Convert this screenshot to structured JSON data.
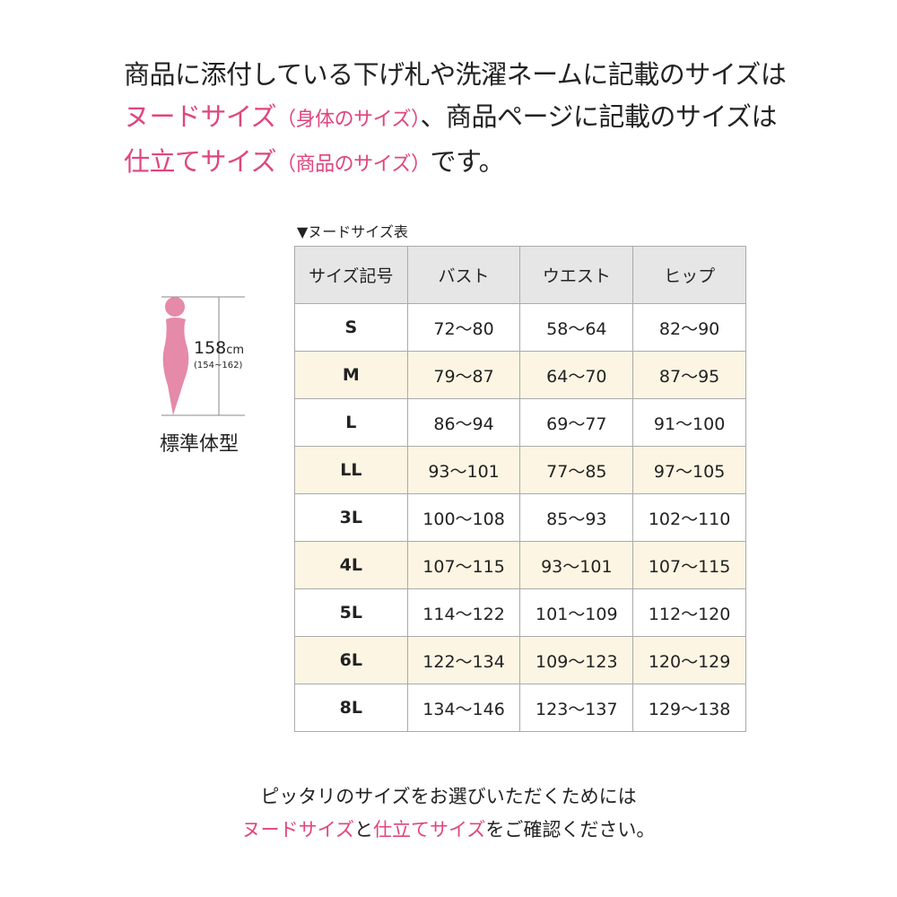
{
  "intro": {
    "line1": "商品に添付している下げ札や洗濯ネームに記載のサイズは",
    "nude_label": "ヌードサイズ",
    "nude_note": "（身体のサイズ）",
    "line2_rest": "、商品ページに記載のサイズは",
    "finished_label": "仕立てサイズ",
    "finished_note": "（商品のサイズ）",
    "line3_rest": "です。"
  },
  "figure": {
    "height": "158",
    "unit": "cm",
    "range": "(154~162)",
    "label": "標準体型",
    "color": "#e58aa8"
  },
  "table": {
    "caption": "▼ヌードサイズ表",
    "headers": [
      "サイズ記号",
      "バスト",
      "ウエスト",
      "ヒップ"
    ],
    "rows": [
      [
        "S",
        "72〜80",
        "58〜64",
        "82〜90"
      ],
      [
        "M",
        "79〜87",
        "64〜70",
        "87〜95"
      ],
      [
        "L",
        "86〜94",
        "69〜77",
        "91〜100"
      ],
      [
        "LL",
        "93〜101",
        "77〜85",
        "97〜105"
      ],
      [
        "3L",
        "100〜108",
        "85〜93",
        "102〜110"
      ],
      [
        "4L",
        "107〜115",
        "93〜101",
        "107〜115"
      ],
      [
        "5L",
        "114〜122",
        "101〜109",
        "112〜120"
      ],
      [
        "6L",
        "122〜134",
        "109〜123",
        "120〜129"
      ],
      [
        "8L",
        "134〜146",
        "123〜137",
        "129〜138"
      ]
    ]
  },
  "outro": {
    "line1": "ピッタリのサイズをお選びいただくためには",
    "nude_label": "ヌードサイズ",
    "and": "と",
    "finished_label": "仕立てサイズ",
    "rest": "をご確認ください。"
  },
  "colors": {
    "accent": "#e0457e",
    "alt_row": "#fdf5e3",
    "header": "#e6e6e6"
  }
}
